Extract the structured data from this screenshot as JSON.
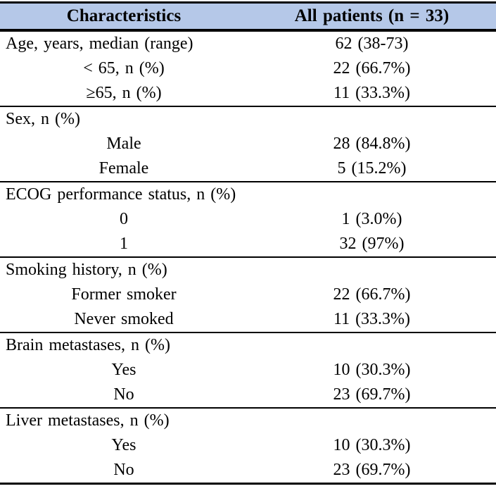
{
  "table": {
    "colors": {
      "header_bg": "#b5c8e8",
      "border": "#000000",
      "text": "#000000"
    },
    "header": {
      "col1": "Characteristics",
      "col2": "All patients (n = 33)"
    },
    "sections": [
      {
        "rows": [
          {
            "label": "Age, years, median (range)",
            "value": "62 (38-73)"
          },
          {
            "label": "< 65, n (%)",
            "value": "22 (66.7%)"
          },
          {
            "label": "≥65, n (%)",
            "value": "11 (33.3%)"
          }
        ]
      },
      {
        "rows": [
          {
            "label": "Sex, n (%)",
            "value": ""
          },
          {
            "label": "Male",
            "value": "28 (84.8%)"
          },
          {
            "label": "Female",
            "value": "5 (15.2%)"
          }
        ]
      },
      {
        "rows": [
          {
            "label": "ECOG performance status, n (%)",
            "value": ""
          },
          {
            "label": "0",
            "value": "1 (3.0%)"
          },
          {
            "label": "1",
            "value": "32 (97%)"
          }
        ]
      },
      {
        "rows": [
          {
            "label": "Smoking history, n (%)",
            "value": ""
          },
          {
            "label": "Former smoker",
            "value": "22 (66.7%)"
          },
          {
            "label": "Never smoked",
            "value": "11 (33.3%)"
          }
        ]
      },
      {
        "rows": [
          {
            "label": "Brain metastases, n (%)",
            "value": ""
          },
          {
            "label": "Yes",
            "value": "10 (30.3%)"
          },
          {
            "label": "No",
            "value": "23 (69.7%)"
          }
        ]
      },
      {
        "rows": [
          {
            "label": "Liver metastases, n (%)",
            "value": ""
          },
          {
            "label": "Yes",
            "value": "10 (30.3%)"
          },
          {
            "label": "No",
            "value": "23 (69.7%)"
          }
        ]
      }
    ]
  }
}
